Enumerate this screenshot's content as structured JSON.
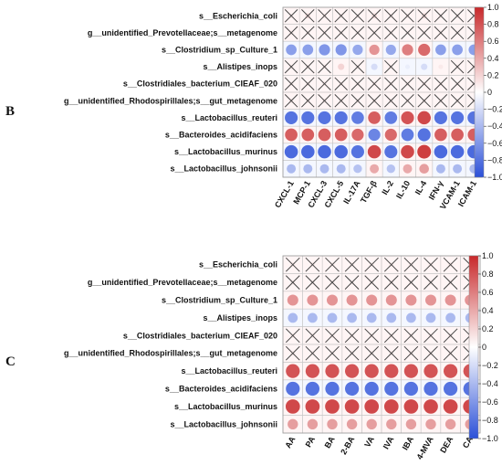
{
  "chart_data": [
    {
      "type": "heatmap",
      "panel_label": "B",
      "rows": [
        "s__Escherichia_coli",
        "g__unidentified_Prevotellaceae;s__metagenome",
        "s__Clostridium_sp_Culture_1",
        "s__Alistipes_inops",
        "s__Clostridiales_bacterium_CIEAF_020",
        "g__unidentified_Rhodospirillales;s__gut_metagenome",
        "s__Lactobacillus_reuteri",
        "s__Bacteroides_acidifaciens",
        "s__Lactobacillus_murinus",
        "s__Lactobacillus_johnsonii"
      ],
      "columns": [
        "CXCL-1",
        "MCP-1",
        "CXCL-3",
        "CXCL-5",
        "IL-17A",
        "TGF-β",
        "IL-2",
        "IL-10",
        "IL-4",
        "IFN-γ",
        "VCAM-1",
        "ICAM-1"
      ],
      "values": [
        [
          0.1,
          0.15,
          0.1,
          0.1,
          0.1,
          0.15,
          0.1,
          0.1,
          0.15,
          0.1,
          0.1,
          0.1
        ],
        [
          0.1,
          0.1,
          0.1,
          0.1,
          0.1,
          0.1,
          0.1,
          0.1,
          0.1,
          0.1,
          0.1,
          0.1
        ],
        [
          -0.55,
          -0.55,
          -0.6,
          -0.6,
          -0.5,
          0.5,
          -0.5,
          0.6,
          0.7,
          -0.55,
          -0.55,
          -0.55
        ],
        [
          0.1,
          0.1,
          0.1,
          0.2,
          0.1,
          -0.2,
          0.1,
          -0.1,
          -0.2,
          0.1,
          0.1,
          0.1
        ],
        [
          0.1,
          0.1,
          0.1,
          0.1,
          0.1,
          0.1,
          0.1,
          0.1,
          0.1,
          0.1,
          0.1,
          0.1
        ],
        [
          0.1,
          0.1,
          0.1,
          0.1,
          0.1,
          0.1,
          0.1,
          0.1,
          0.1,
          0.1,
          0.1,
          0.1
        ],
        [
          -0.8,
          -0.8,
          -0.8,
          -0.8,
          -0.75,
          0.75,
          -0.75,
          0.8,
          0.85,
          -0.8,
          -0.8,
          -0.8
        ],
        [
          0.75,
          0.75,
          0.75,
          0.75,
          0.7,
          -0.7,
          0.7,
          -0.75,
          -0.8,
          0.75,
          0.75,
          0.75
        ],
        [
          -0.85,
          -0.85,
          -0.85,
          -0.85,
          -0.8,
          0.85,
          -0.8,
          0.85,
          0.9,
          -0.85,
          -0.85,
          -0.85
        ],
        [
          -0.4,
          -0.4,
          -0.4,
          -0.4,
          -0.35,
          0.4,
          -0.35,
          0.4,
          0.45,
          -0.4,
          -0.4,
          -0.4
        ]
      ],
      "not_significant": [
        [
          true,
          true,
          true,
          true,
          true,
          true,
          true,
          true,
          true,
          true,
          true,
          true
        ],
        [
          true,
          true,
          true,
          true,
          true,
          true,
          true,
          true,
          true,
          true,
          true,
          true
        ],
        [
          false,
          false,
          false,
          false,
          false,
          false,
          false,
          false,
          false,
          false,
          false,
          false
        ],
        [
          true,
          true,
          true,
          false,
          true,
          false,
          true,
          false,
          false,
          false,
          true,
          true
        ],
        [
          true,
          true,
          true,
          true,
          true,
          true,
          true,
          true,
          true,
          true,
          true,
          true
        ],
        [
          true,
          true,
          true,
          true,
          true,
          true,
          true,
          true,
          true,
          true,
          true,
          true
        ],
        [
          false,
          false,
          false,
          false,
          false,
          false,
          false,
          false,
          false,
          false,
          false,
          false
        ],
        [
          false,
          false,
          false,
          false,
          false,
          false,
          false,
          false,
          false,
          false,
          false,
          false
        ],
        [
          false,
          false,
          false,
          false,
          false,
          false,
          false,
          false,
          false,
          false,
          false,
          false
        ],
        [
          false,
          false,
          false,
          false,
          false,
          false,
          false,
          false,
          false,
          false,
          false,
          false
        ]
      ],
      "colorbar": {
        "min": -1.0,
        "max": 1.0,
        "ticks": [
          "1.0",
          "0.8",
          "0.6",
          "0.4",
          "0.2",
          "0",
          "−0.2",
          "−0.4",
          "−0.6",
          "−0.8",
          "−1.0"
        ]
      }
    },
    {
      "type": "heatmap",
      "panel_label": "C",
      "rows": [
        "s__Escherichia_coli",
        "g__unidentified_Prevotellaceae;s__metagenome",
        "s__Clostridium_sp_Culture_1",
        "s__Alistipes_inops",
        "s__Clostridiales_bacterium_CIEAF_020",
        "g__unidentified_Rhodospirillales;s__gut_metagenome",
        "s__Lactobacillus_reuteri",
        "s__Bacteroides_acidifaciens",
        "s__Lactobacillus_murinus",
        "s__Lactobacillus_johnsonii"
      ],
      "columns": [
        "AA",
        "PA",
        "BA",
        "2-BA",
        "VA",
        "IVA",
        "IBA",
        "4-MVA",
        "DEA",
        "CA"
      ],
      "values": [
        [
          0.1,
          0.1,
          0.1,
          0.1,
          0.1,
          0.1,
          0.1,
          0.1,
          0.1,
          0.1
        ],
        [
          0.1,
          0.1,
          0.1,
          0.1,
          0.1,
          0.1,
          0.1,
          0.1,
          0.1,
          0.1
        ],
        [
          0.5,
          0.5,
          0.5,
          0.5,
          0.5,
          0.5,
          0.5,
          0.5,
          0.5,
          0.5
        ],
        [
          -0.4,
          -0.4,
          -0.4,
          -0.4,
          -0.4,
          -0.4,
          -0.4,
          -0.4,
          -0.4,
          -0.4
        ],
        [
          0.1,
          0.1,
          0.1,
          0.1,
          0.1,
          0.1,
          0.1,
          0.1,
          0.1,
          0.1
        ],
        [
          0.1,
          0.1,
          0.1,
          0.1,
          0.1,
          0.1,
          0.1,
          0.1,
          0.1,
          0.1
        ],
        [
          0.8,
          0.8,
          0.8,
          0.8,
          0.8,
          0.8,
          0.8,
          0.8,
          0.8,
          0.8
        ],
        [
          -0.8,
          -0.8,
          -0.8,
          -0.8,
          -0.8,
          -0.8,
          -0.8,
          -0.8,
          -0.8,
          -0.8
        ],
        [
          0.85,
          0.85,
          0.85,
          0.85,
          0.85,
          0.85,
          0.85,
          0.85,
          0.85,
          0.85
        ],
        [
          0.45,
          0.45,
          0.45,
          0.45,
          0.45,
          0.45,
          0.45,
          0.45,
          0.45,
          0.45
        ]
      ],
      "not_significant": [
        [
          true,
          true,
          true,
          true,
          true,
          true,
          true,
          true,
          true,
          true
        ],
        [
          true,
          true,
          true,
          true,
          true,
          true,
          true,
          true,
          true,
          true
        ],
        [
          false,
          false,
          false,
          false,
          false,
          false,
          false,
          false,
          false,
          false
        ],
        [
          false,
          false,
          false,
          false,
          false,
          false,
          false,
          false,
          false,
          false
        ],
        [
          true,
          true,
          true,
          true,
          true,
          true,
          true,
          true,
          true,
          true
        ],
        [
          true,
          true,
          true,
          true,
          true,
          true,
          true,
          true,
          true,
          true
        ],
        [
          false,
          false,
          false,
          false,
          false,
          false,
          false,
          false,
          false,
          false
        ],
        [
          false,
          false,
          false,
          false,
          false,
          false,
          false,
          false,
          false,
          false
        ],
        [
          false,
          false,
          false,
          false,
          false,
          false,
          false,
          false,
          false,
          false
        ],
        [
          false,
          false,
          false,
          false,
          false,
          false,
          false,
          false,
          false,
          false
        ]
      ],
      "colorbar": {
        "min": -1.0,
        "max": 1.0,
        "ticks": [
          "1.0",
          "0.8",
          "0.6",
          "0.4",
          "0.2",
          "0",
          "−0.2",
          "−0.4",
          "−0.6",
          "−0.8",
          "−1.0"
        ]
      }
    }
  ]
}
